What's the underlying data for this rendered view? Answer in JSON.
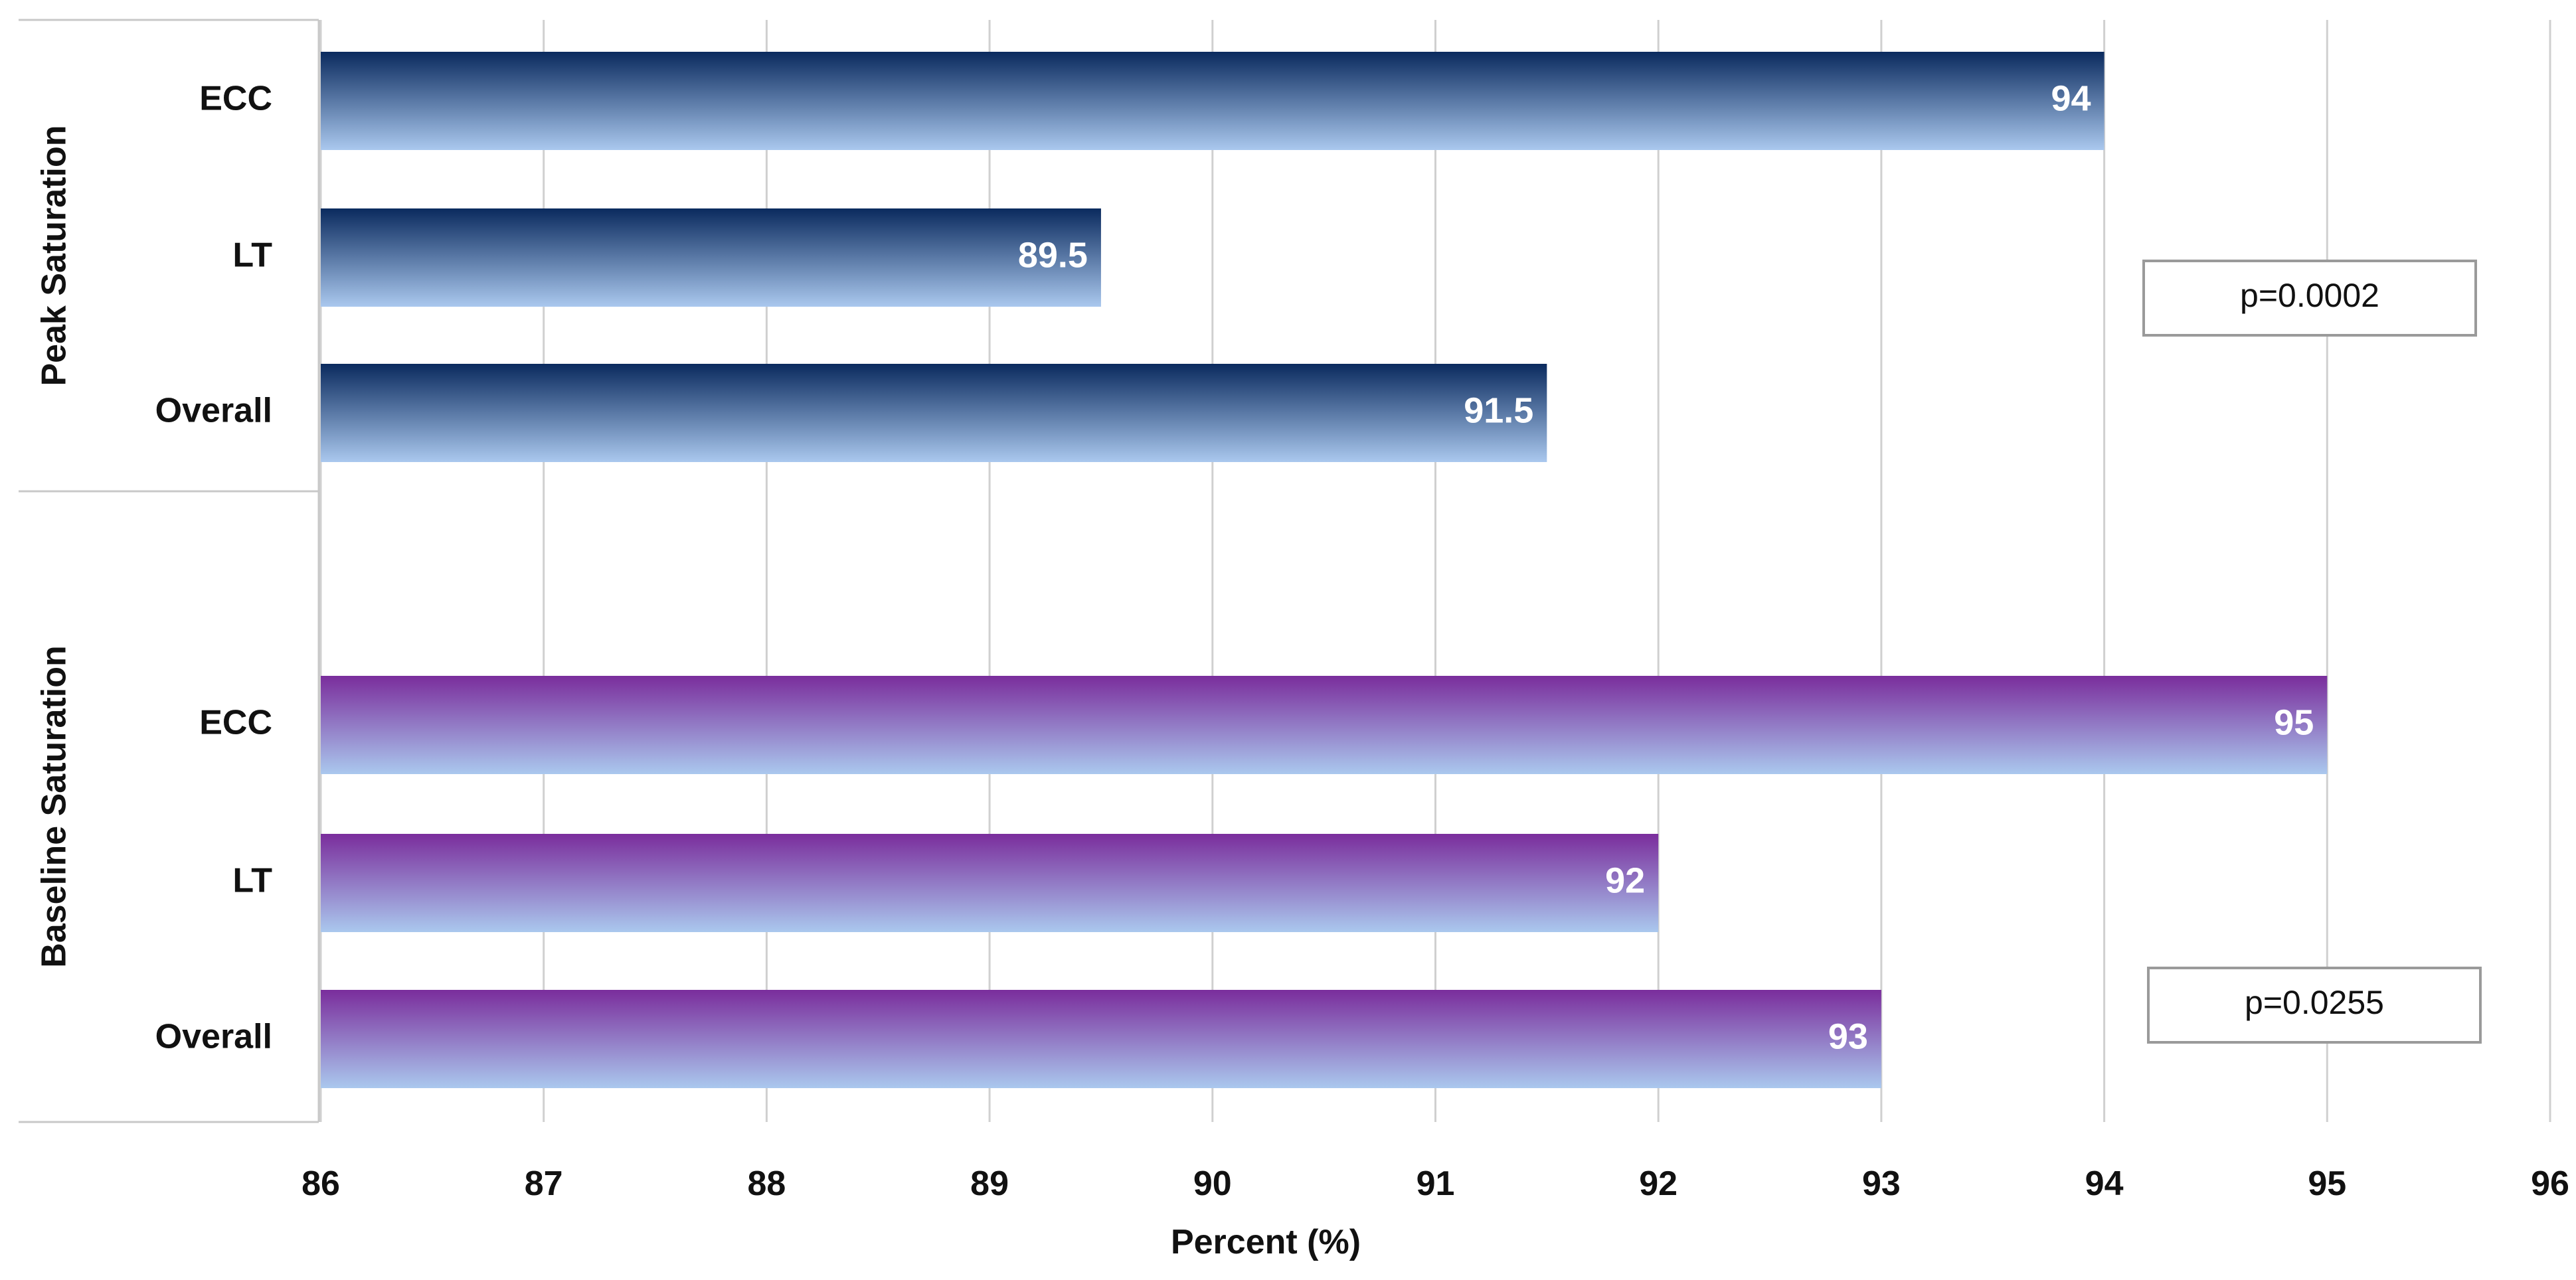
{
  "chart_data": {
    "type": "bar",
    "orientation": "horizontal",
    "xlabel": "Percent (%)",
    "xlim": [
      86,
      96
    ],
    "xticks": [
      86,
      87,
      88,
      89,
      90,
      91,
      92,
      93,
      94,
      95,
      96
    ],
    "grid": true,
    "groups": [
      {
        "name": "Peak Saturation",
        "categories": [
          "ECC",
          "LT",
          "Overall"
        ],
        "values": [
          94,
          89.5,
          91.5
        ],
        "data_labels": [
          "94",
          "89.5",
          "91.5"
        ],
        "color_top": "#0a2a5e",
        "color_bottom": "#aac8ee",
        "annotation": "p=0.0002"
      },
      {
        "name": "Baseline Saturation",
        "categories": [
          "ECC",
          "LT",
          "Overall"
        ],
        "values": [
          95,
          92,
          93
        ],
        "data_labels": [
          "95",
          "92",
          "93"
        ],
        "color_top": "#7a2d9c",
        "color_bottom": "#aac8ee",
        "annotation": "p=0.0255"
      }
    ]
  },
  "colors": {
    "gridline": "#d0d0d0",
    "axis": "#c8c8c8",
    "box_border": "#9a9a9a"
  }
}
